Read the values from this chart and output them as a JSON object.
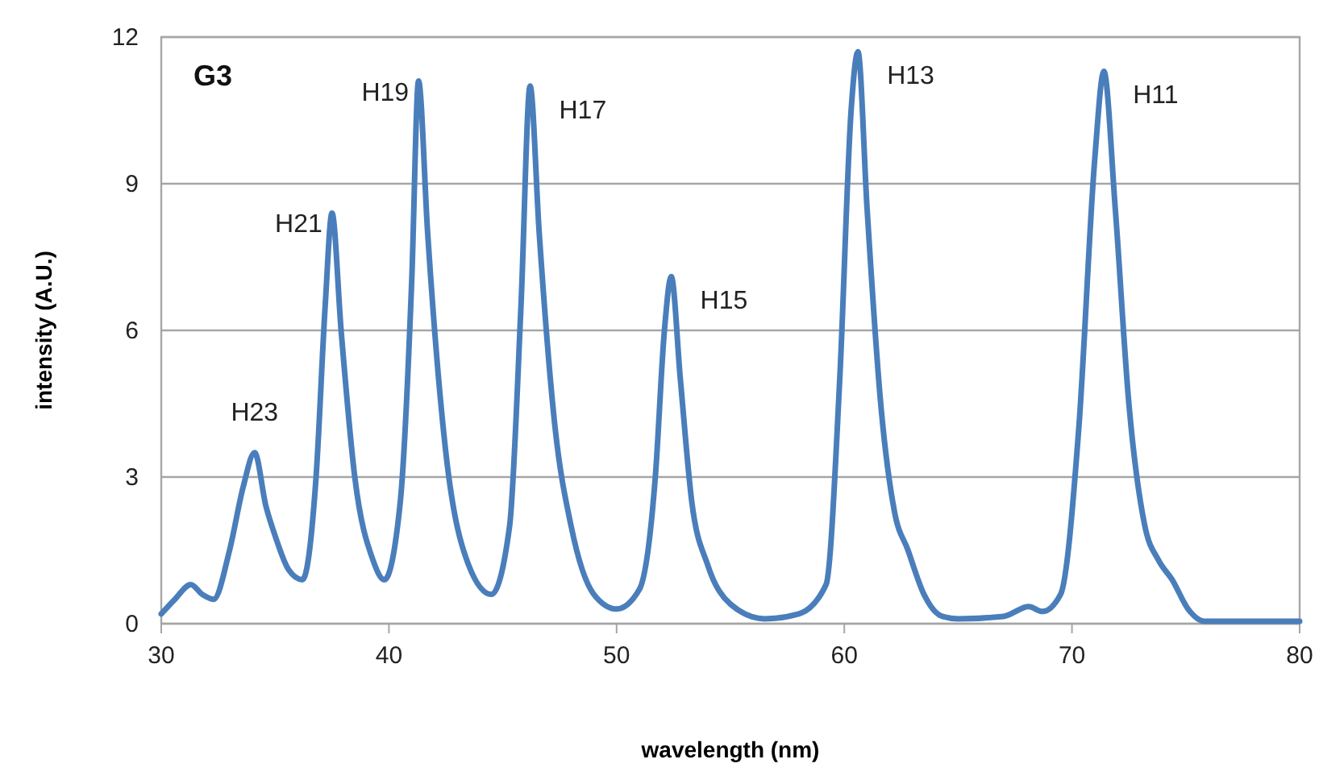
{
  "chart_data": {
    "type": "line",
    "xlabel": "wavelength (nm)",
    "ylabel": "intensity (A.U.)",
    "xlim": [
      30,
      80
    ],
    "xticks": [
      30,
      40,
      50,
      60,
      70,
      80
    ],
    "ylim": [
      0,
      12
    ],
    "yticks": [
      0,
      3,
      6,
      9,
      12
    ],
    "grid": "y",
    "marker": "none",
    "line_style": "solid",
    "annotations": [
      "G3",
      {
        "text": "H23",
        "x": 34.1,
        "y": 3.5
      },
      {
        "text": "H21",
        "x": 37.5,
        "y": 8.4
      },
      {
        "text": "H19",
        "x": 41.3,
        "y": 11.1
      },
      {
        "text": "H17",
        "x": 46.2,
        "y": 11.0
      },
      {
        "text": "H15",
        "x": 52.4,
        "y": 7.1
      },
      {
        "text": "H13",
        "x": 60.6,
        "y": 11.7
      },
      {
        "text": "H11",
        "x": 71.4,
        "y": 11.3
      }
    ],
    "series": [
      {
        "color": "#4a7ebb",
        "x": [
          30,
          30.6,
          31.3,
          31.8,
          32.3,
          33,
          33.6,
          34.1,
          34.6,
          35,
          35.6,
          36.2,
          36.8,
          37.2,
          37.5,
          37.9,
          38.5,
          39.3,
          39.8,
          40.5,
          41,
          41.3,
          41.7,
          42.5,
          43.5,
          44.5,
          45.3,
          45.8,
          46.2,
          46.6,
          47.3,
          48,
          49,
          50,
          51,
          51.7,
          52.1,
          52.4,
          52.8,
          53.3,
          54,
          55,
          56.5,
          58,
          59.2,
          59.8,
          60.3,
          60.6,
          61,
          61.6,
          62.2,
          62.8,
          63.5,
          64.3,
          65,
          67,
          68.1,
          68.7,
          69.5,
          70.3,
          71,
          71.4,
          71.9,
          72.5,
          73.2,
          73.8,
          74.4,
          75.1,
          75.8,
          77,
          80
        ],
        "values": [
          0.2,
          0.5,
          0.8,
          0.6,
          0.5,
          1.5,
          2.8,
          3.5,
          2.4,
          1.8,
          1.1,
          0.9,
          3,
          6.5,
          8.4,
          6,
          3,
          1.3,
          0.9,
          2.5,
          7,
          11.1,
          8,
          3.5,
          1.2,
          0.6,
          2,
          6.5,
          11.0,
          8,
          4,
          2,
          0.6,
          0.3,
          0.7,
          3,
          6,
          7.1,
          5,
          2.5,
          1.2,
          0.4,
          0.1,
          0.2,
          0.8,
          5,
          10.5,
          11.7,
          8.5,
          4.5,
          2.3,
          1.5,
          0.6,
          0.15,
          0.1,
          0.15,
          0.35,
          0.25,
          0.6,
          4,
          9.5,
          11.3,
          8.5,
          4.5,
          2,
          1.3,
          0.9,
          0.3,
          0.05,
          0.05,
          0.05
        ]
      }
    ]
  }
}
